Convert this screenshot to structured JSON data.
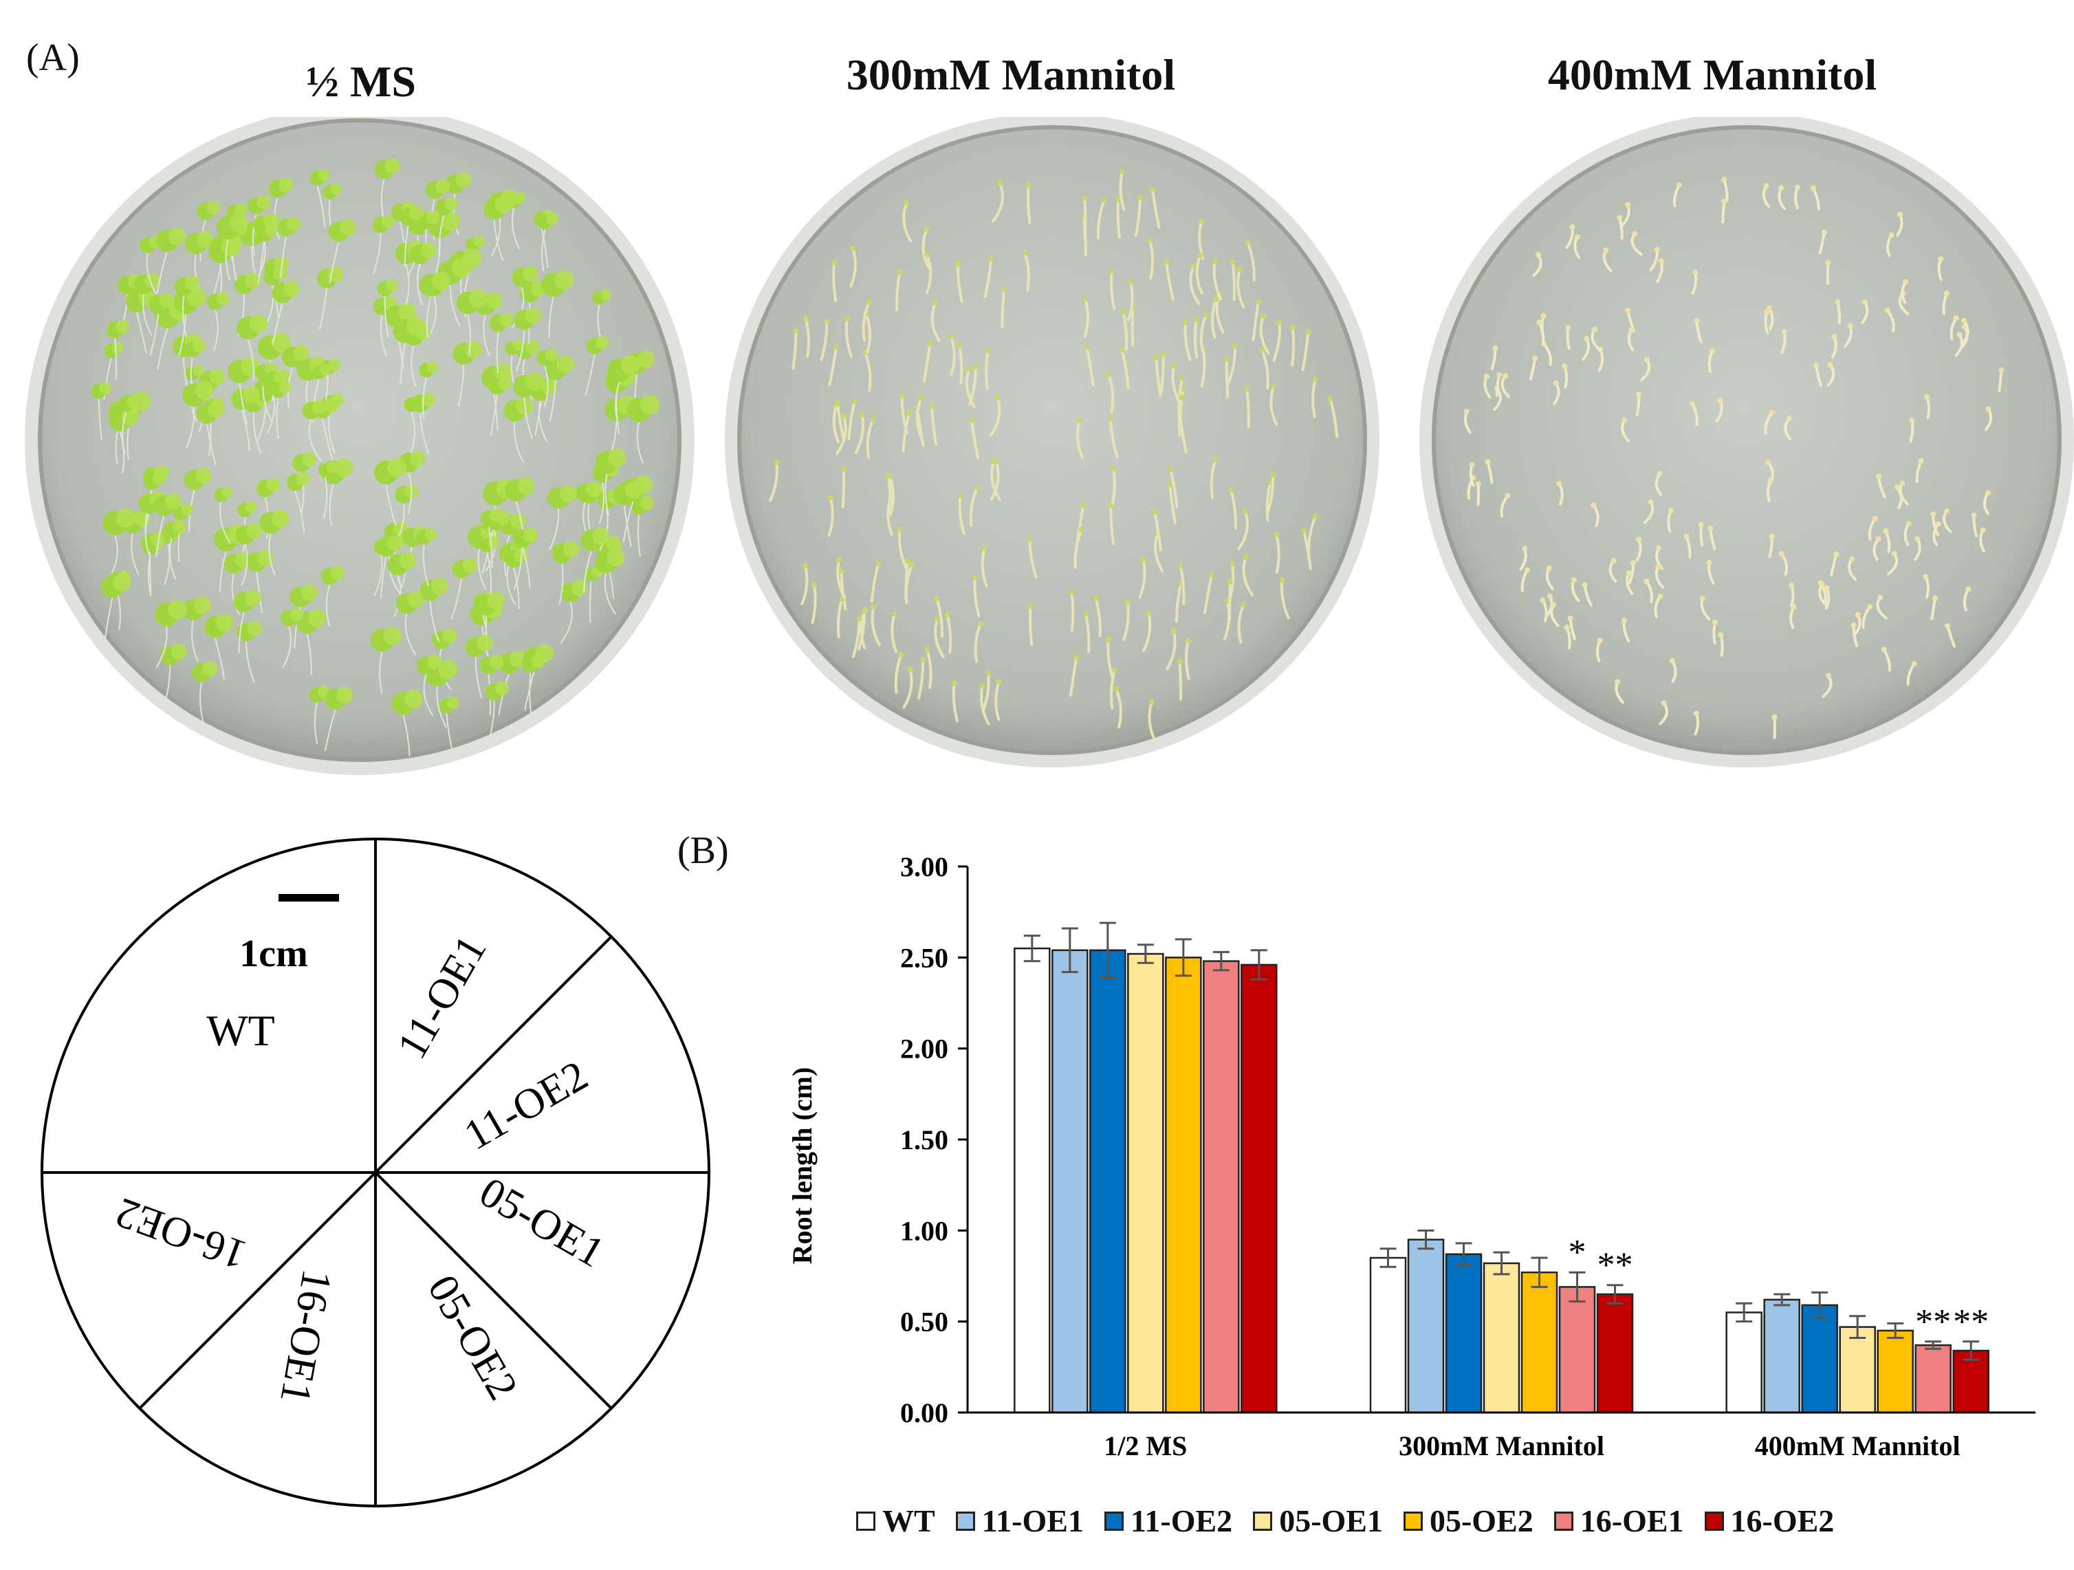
{
  "panel_a": {
    "label": "(A)",
    "plates": [
      {
        "title": "½ MS",
        "growth": "dense",
        "seedling_color": "#9fd63a"
      },
      {
        "title": "300mM Mannitol",
        "growth": "medium",
        "seedling_color": "#e8e2b8"
      },
      {
        "title": "400mM Mannitol",
        "growth": "sparse",
        "seedling_color": "#efe9c6"
      }
    ],
    "plate_layout": {
      "scale_text": "1cm",
      "sectors": [
        "WT",
        "11-OE1",
        "11-OE2",
        "05-OE1",
        "05-OE2",
        "16-OE1",
        "16-OE2"
      ]
    }
  },
  "panel_b": {
    "label": "(B)"
  },
  "chart_data": {
    "type": "bar",
    "title": "",
    "xlabel": "",
    "ylabel": "Root length (cm)",
    "ylim": [
      0,
      3.0
    ],
    "yticks": [
      "0.00",
      "0.50",
      "1.00",
      "1.50",
      "2.00",
      "2.50",
      "3.00"
    ],
    "categories": [
      "1/2 MS",
      "300mM Mannitol",
      "400mM Mannitol"
    ],
    "legend_position": "bottom",
    "grid": false,
    "series": [
      {
        "name": "WT",
        "color": "#ffffff",
        "values": [
          2.55,
          0.85,
          0.55
        ],
        "errors": [
          0.07,
          0.05,
          0.05
        ]
      },
      {
        "name": "11-OE1",
        "color": "#9dc3e6",
        "values": [
          2.54,
          0.95,
          0.62
        ],
        "errors": [
          0.12,
          0.05,
          0.03
        ]
      },
      {
        "name": "11-OE2",
        "color": "#0070c0",
        "values": [
          2.54,
          0.87,
          0.59
        ],
        "errors": [
          0.15,
          0.06,
          0.07
        ]
      },
      {
        "name": "05-OE1",
        "color": "#ffe699",
        "values": [
          2.52,
          0.82,
          0.47
        ],
        "errors": [
          0.05,
          0.06,
          0.06
        ]
      },
      {
        "name": "05-OE2",
        "color": "#ffc000",
        "values": [
          2.5,
          0.77,
          0.45
        ],
        "errors": [
          0.1,
          0.08,
          0.04
        ]
      },
      {
        "name": "16-OE1",
        "color": "#f08080",
        "values": [
          2.48,
          0.69,
          0.37
        ],
        "errors": [
          0.05,
          0.08,
          0.02
        ]
      },
      {
        "name": "16-OE2",
        "color": "#c00000",
        "values": [
          2.46,
          0.65,
          0.34
        ],
        "errors": [
          0.08,
          0.05,
          0.05
        ]
      }
    ],
    "annotations": [
      {
        "category": "300mM Mannitol",
        "series": "16-OE1",
        "text": "*"
      },
      {
        "category": "300mM Mannitol",
        "series": "16-OE2",
        "text": "**"
      },
      {
        "category": "400mM Mannitol",
        "series": "16-OE1",
        "text": "**"
      },
      {
        "category": "400mM Mannitol",
        "series": "16-OE2",
        "text": "**"
      }
    ]
  }
}
